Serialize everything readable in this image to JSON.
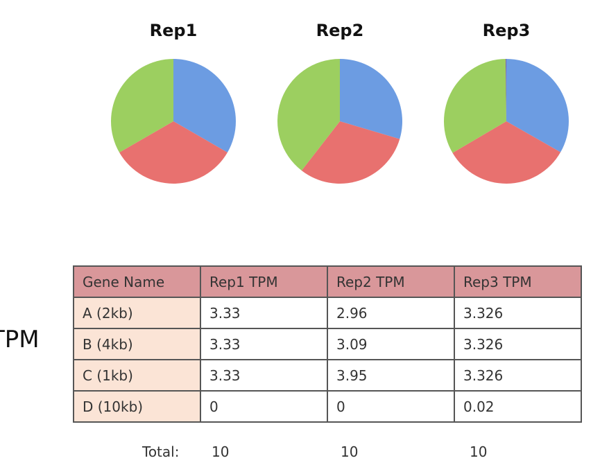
{
  "chart_data": [
    {
      "type": "pie",
      "title": "Rep1",
      "values": [
        3.33,
        3.33,
        3.33,
        0
      ],
      "colors": [
        "#6c9ce2",
        "#e8716f",
        "#9ccf60",
        "#8064a2"
      ]
    },
    {
      "type": "pie",
      "title": "Rep2",
      "values": [
        2.96,
        3.09,
        3.95,
        0
      ],
      "colors": [
        "#6c9ce2",
        "#e8716f",
        "#9ccf60",
        "#8064a2"
      ]
    },
    {
      "type": "pie",
      "title": "Rep3",
      "values": [
        3.326,
        3.326,
        3.326,
        0.02
      ],
      "colors": [
        "#6c9ce2",
        "#e8716f",
        "#9ccf60",
        "#8064a2"
      ]
    }
  ],
  "side_label": "TPM",
  "table": {
    "header": [
      "Gene Name",
      "Rep1 TPM",
      "Rep2 TPM",
      "Rep3 TPM"
    ],
    "rows": [
      [
        "A (2kb)",
        "3.33",
        "2.96",
        "3.326"
      ],
      [
        "B (4kb)",
        "3.33",
        "3.09",
        "3.326"
      ],
      [
        "C (1kb)",
        "3.33",
        "3.95",
        "3.326"
      ],
      [
        "D (10kb)",
        "0",
        "0",
        "0.02"
      ]
    ],
    "total_label": "Total:",
    "totals": [
      "10",
      "10",
      "10"
    ]
  }
}
